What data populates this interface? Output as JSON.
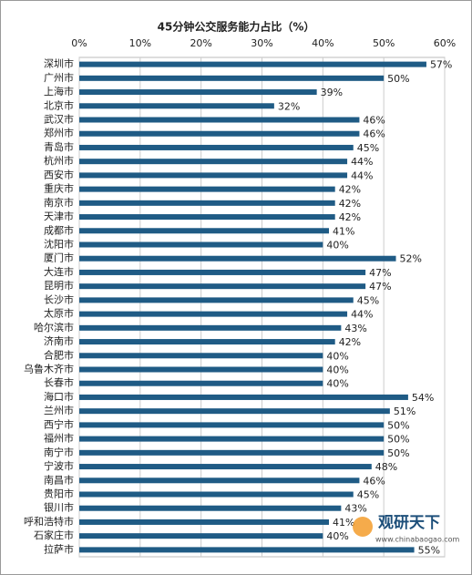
{
  "chart_data": {
    "type": "barh",
    "title": "45分钟公交服务能力占比（%）",
    "categories": [
      "深圳市",
      "广州市",
      "上海市",
      "北京市",
      "武汉市",
      "郑州市",
      "青岛市",
      "杭州市",
      "西安市",
      "重庆市",
      "南京市",
      "天津市",
      "成都市",
      "沈阳市",
      "厦门市",
      "大连市",
      "昆明市",
      "长沙市",
      "太原市",
      "哈尔滨市",
      "济南市",
      "合肥市",
      "乌鲁木齐市",
      "长春市",
      "海口市",
      "兰州市",
      "西宁市",
      "福州市",
      "南宁市",
      "宁波市",
      "南昌市",
      "贵阳市",
      "银川市",
      "呼和浩特市",
      "石家庄市",
      "拉萨市"
    ],
    "values": [
      57,
      50,
      39,
      32,
      46,
      46,
      45,
      44,
      44,
      42,
      42,
      42,
      41,
      40,
      52,
      47,
      47,
      45,
      44,
      43,
      42,
      40,
      40,
      40,
      54,
      51,
      50,
      50,
      50,
      48,
      46,
      45,
      43,
      41,
      40,
      55
    ],
    "value_labels": [
      "57%",
      "50%",
      "39%",
      "32%",
      "46%",
      "46%",
      "45%",
      "44%",
      "44%",
      "42%",
      "42%",
      "42%",
      "41%",
      "40%",
      "52%",
      "47%",
      "47%",
      "45%",
      "44%",
      "43%",
      "42%",
      "40%",
      "40%",
      "40%",
      "54%",
      "51%",
      "50%",
      "50%",
      "50%",
      "48%",
      "46%",
      "45%",
      "43%",
      "41%",
      "40%",
      "55%"
    ],
    "color": "#1f5b85",
    "xlim": [
      0,
      60
    ],
    "xticks": [
      {
        "value": 0,
        "label": "0%"
      },
      {
        "value": 10,
        "label": "10%"
      },
      {
        "value": 20,
        "label": "20%"
      },
      {
        "value": 30,
        "label": "30%"
      },
      {
        "value": 40,
        "label": "40%"
      },
      {
        "value": 50,
        "label": "50%"
      },
      {
        "value": 60,
        "label": "60%"
      }
    ],
    "grid": true,
    "watermark": {
      "brand": "观研天下",
      "url": "www.chinabaogao.com"
    }
  }
}
